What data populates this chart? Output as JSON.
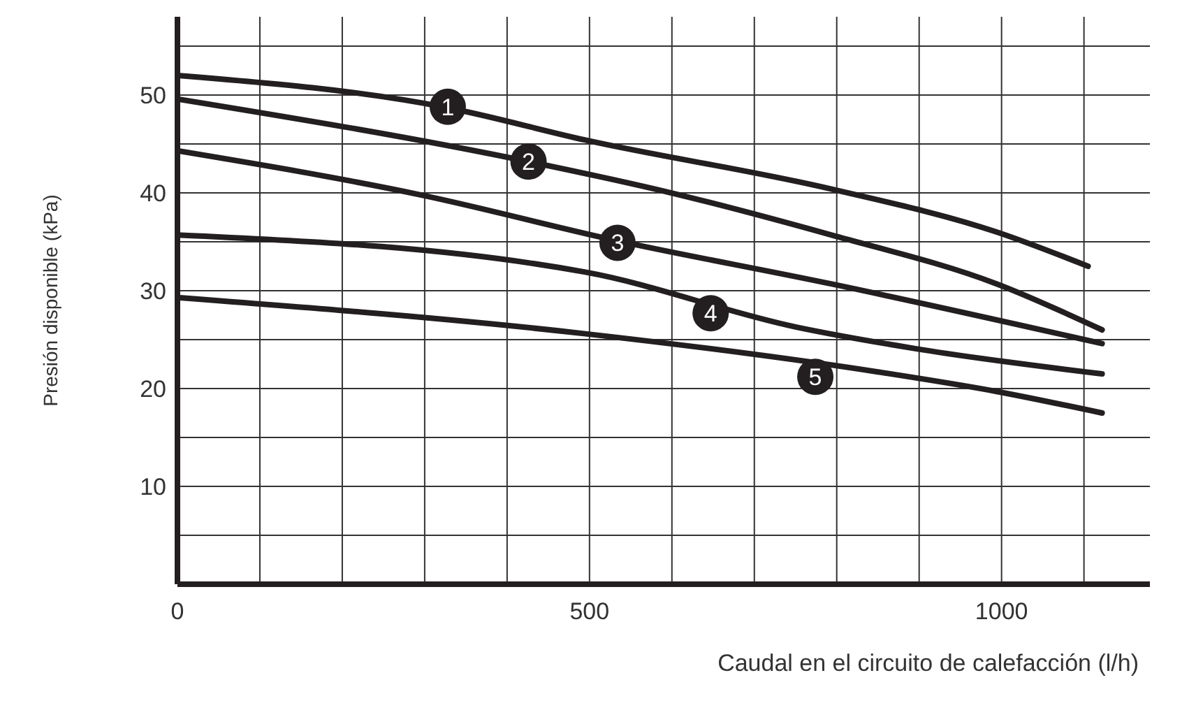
{
  "chart_data": {
    "type": "line",
    "xlabel": "Caudal en el circuito de calefacción (l/h)",
    "ylabel": "Presión disponible (kPa)",
    "xlim": [
      0,
      1180
    ],
    "ylim": [
      0,
      58
    ],
    "xticks": [
      0,
      {
        "value": 100,
        "label": null
      },
      {
        "value": 200,
        "label": null
      },
      {
        "value": 300,
        "label": null
      },
      {
        "value": 400,
        "label": null
      },
      500,
      {
        "value": 600,
        "label": null
      },
      {
        "value": 700,
        "label": null
      },
      {
        "value": 800,
        "label": null
      },
      {
        "value": 900,
        "label": null
      },
      1000,
      {
        "value": 1100,
        "label": null
      }
    ],
    "yticks": [
      {
        "value": 5,
        "label": null
      },
      10,
      {
        "value": 15,
        "label": null
      },
      20,
      {
        "value": 25,
        "label": null
      },
      30,
      {
        "value": 35,
        "label": null
      },
      40,
      {
        "value": 45,
        "label": null
      },
      50,
      {
        "value": 55,
        "label": null
      }
    ],
    "grid": true,
    "marker": "none",
    "line_style": "solid",
    "series": [
      {
        "color": "#231f20",
        "x": [
          0,
          328,
          495,
          793,
          994,
          1105
        ],
        "values": [
          52.0,
          48.7,
          45.4,
          40.4,
          36.0,
          32.5
        ]
      },
      {
        "color": "#231f20",
        "x": [
          0,
          426,
          594,
          793,
          994,
          1122
        ],
        "values": [
          49.6,
          43.2,
          40.1,
          35.7,
          30.7,
          26.0
        ]
      },
      {
        "color": "#231f20",
        "x": [
          0,
          295,
          534,
          793,
          1122
        ],
        "values": [
          44.3,
          39.8,
          35.1,
          30.7,
          24.6
        ]
      },
      {
        "color": "#231f20",
        "x": [
          0,
          495,
          750,
          894,
          1122
        ],
        "values": [
          35.7,
          31.9,
          26.3,
          24.1,
          21.5
        ]
      },
      {
        "color": "#231f20",
        "x": [
          0,
          495,
          850,
          994,
          1122
        ],
        "values": [
          29.3,
          25.6,
          21.7,
          19.7,
          17.5
        ]
      }
    ],
    "annotations": [
      {
        "text": "1",
        "x": 328,
        "y": 48.8
      },
      {
        "text": "2",
        "x": 426,
        "y": 43.2
      },
      {
        "text": "3",
        "x": 534,
        "y": 34.9
      },
      {
        "text": "4",
        "x": 647,
        "y": 27.7
      },
      {
        "text": "5",
        "x": 774,
        "y": 21.2
      }
    ]
  }
}
